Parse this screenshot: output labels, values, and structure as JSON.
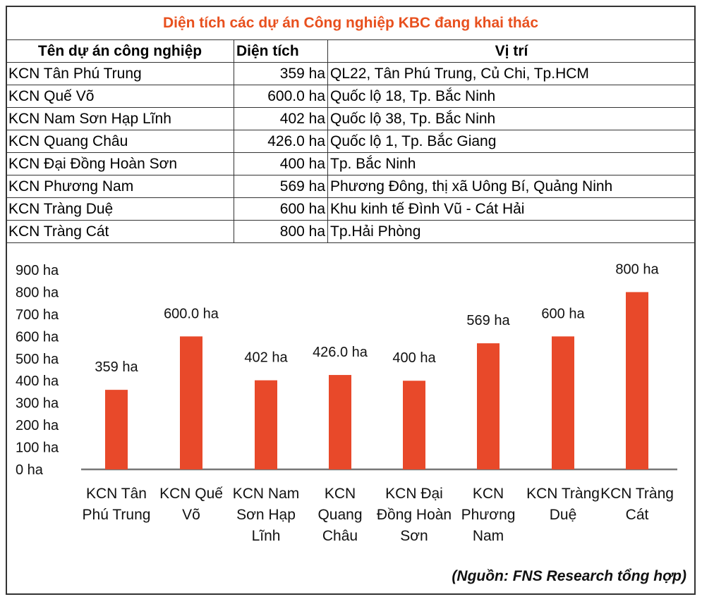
{
  "table": {
    "title": "Diện tích các dự án Công nghiệp KBC đang khai thác",
    "headers": [
      "Tên dự án công nghiệp",
      "Diện tích",
      "Vị trí"
    ],
    "rows": [
      [
        "KCN Tân Phú Trung",
        "359 ha",
        "QL22, Tân Phú Trung, Củ Chi, Tp.HCM"
      ],
      [
        "KCN Quế Võ",
        "600.0 ha",
        "Quốc lộ 18, Tp. Bắc Ninh"
      ],
      [
        "KCN Nam Sơn Hạp Lĩnh",
        "402 ha",
        "Quốc lộ 38, Tp. Bắc Ninh"
      ],
      [
        "KCN Quang Châu",
        "426.0 ha",
        "Quốc lộ 1, Tp. Bắc Giang"
      ],
      [
        "KCN Đại Đồng Hoàn Sơn",
        "400 ha",
        "Tp. Bắc Ninh"
      ],
      [
        "KCN Phương Nam",
        "569 ha",
        "Phương Đông, thị xã Uông Bí, Quảng Ninh"
      ],
      [
        "KCN Tràng Duệ",
        "600 ha",
        "Khu kinh tế Đình Vũ - Cát Hải"
      ],
      [
        "KCN Tràng Cát",
        "800 ha",
        "Tp.Hải Phòng"
      ]
    ]
  },
  "chart_data": {
    "type": "bar",
    "categories": [
      "KCN Tân Phú Trung",
      "KCN Quế Võ",
      "KCN Nam Sơn Hạp Lĩnh",
      "KCN Quang Châu",
      "KCN Đại Đồng Hoàn Sơn",
      "KCN Phương Nam",
      "KCN Tràng Duệ",
      "KCN Tràng Cát"
    ],
    "values": [
      359,
      600,
      402,
      426,
      400,
      569,
      600,
      800
    ],
    "data_labels": [
      "359 ha",
      "600.0 ha",
      "402 ha",
      "426.0 ha",
      "400 ha",
      "569 ha",
      "600 ha",
      "800 ha"
    ],
    "yticks": [
      "0 ha",
      "100 ha",
      "200 ha",
      "300 ha",
      "400 ha",
      "500 ha",
      "600 ha",
      "700 ha",
      "800 ha",
      "900 ha"
    ],
    "ylim": [
      0,
      900
    ],
    "grid": false,
    "bar_color": "#e8492a",
    "title": "",
    "xlabel": "",
    "ylabel": ""
  },
  "source": "(Nguồn: FNS Research tổng hợp)"
}
